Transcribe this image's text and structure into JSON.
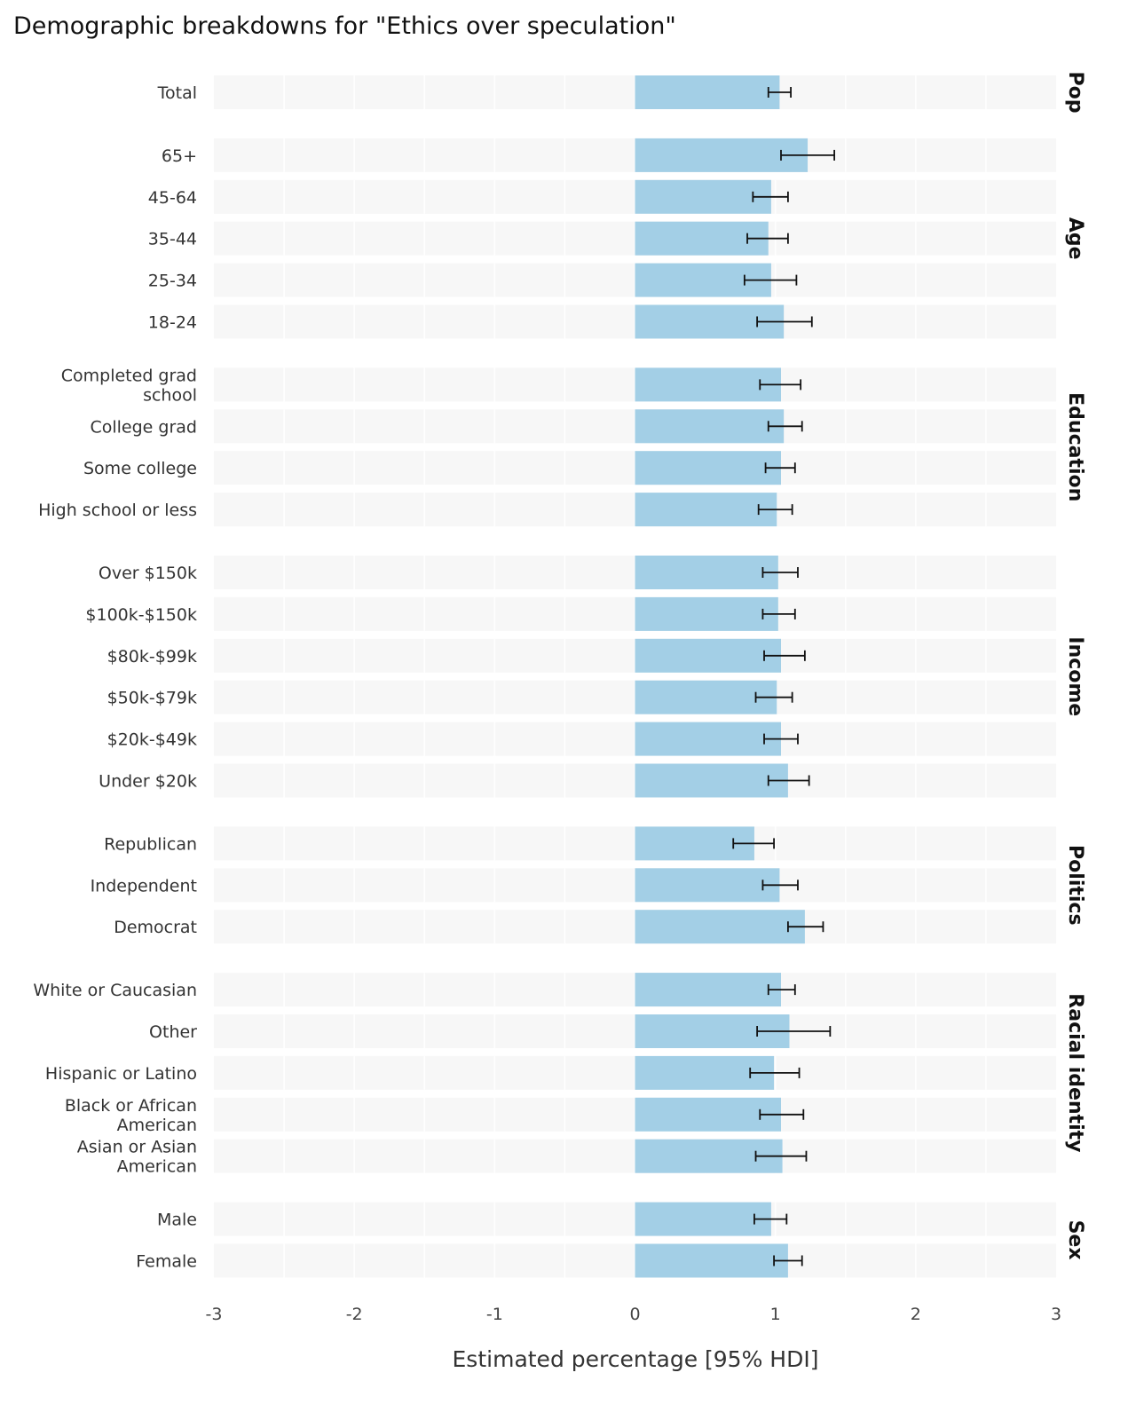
{
  "chart_data": {
    "type": "bar",
    "orientation": "horizontal",
    "title": "Demographic breakdowns for \"Ethics over speculation\"",
    "xlabel": "Estimated percentage [95% HDI]",
    "ylabel": "",
    "xlim": [
      -3,
      3
    ],
    "xticks": [
      -3,
      -2,
      -1,
      0,
      1,
      2,
      3
    ],
    "xtick_labels": [
      "-3",
      "-2",
      "-1",
      "0",
      "1",
      "2",
      "3"
    ],
    "grid": true,
    "bar_color": "#a3cfe6",
    "band_color": "#f7f7f7",
    "errorbar_color": "#111111",
    "facets": [
      {
        "name": "Pop",
        "rows": [
          {
            "label": "Total",
            "value": 1.03,
            "lo": 0.95,
            "hi": 1.11
          }
        ]
      },
      {
        "name": "Age",
        "rows": [
          {
            "label": "65+",
            "value": 1.23,
            "lo": 1.04,
            "hi": 1.42
          },
          {
            "label": "45-64",
            "value": 0.97,
            "lo": 0.84,
            "hi": 1.09
          },
          {
            "label": "35-44",
            "value": 0.95,
            "lo": 0.8,
            "hi": 1.09
          },
          {
            "label": "25-34",
            "value": 0.97,
            "lo": 0.78,
            "hi": 1.15
          },
          {
            "label": "18-24",
            "value": 1.06,
            "lo": 0.87,
            "hi": 1.26
          }
        ]
      },
      {
        "name": "Education",
        "rows": [
          {
            "label": "Completed grad school",
            "lines": [
              "Completed grad",
              "school"
            ],
            "value": 1.04,
            "lo": 0.89,
            "hi": 1.18
          },
          {
            "label": "College grad",
            "value": 1.06,
            "lo": 0.95,
            "hi": 1.19
          },
          {
            "label": "Some college",
            "value": 1.04,
            "lo": 0.93,
            "hi": 1.14
          },
          {
            "label": "High school or less",
            "value": 1.01,
            "lo": 0.88,
            "hi": 1.12
          }
        ]
      },
      {
        "name": "Income",
        "rows": [
          {
            "label": "Over $150k",
            "value": 1.02,
            "lo": 0.91,
            "hi": 1.16
          },
          {
            "label": "$100k-$150k",
            "value": 1.02,
            "lo": 0.91,
            "hi": 1.14
          },
          {
            "label": "$80k-$99k",
            "value": 1.04,
            "lo": 0.92,
            "hi": 1.21
          },
          {
            "label": "$50k-$79k",
            "value": 1.01,
            "lo": 0.86,
            "hi": 1.12
          },
          {
            "label": "$20k-$49k",
            "value": 1.04,
            "lo": 0.92,
            "hi": 1.16
          },
          {
            "label": "Under $20k",
            "value": 1.09,
            "lo": 0.95,
            "hi": 1.24
          }
        ]
      },
      {
        "name": "Politics",
        "rows": [
          {
            "label": "Republican",
            "value": 0.85,
            "lo": 0.7,
            "hi": 0.99
          },
          {
            "label": "Independent",
            "value": 1.03,
            "lo": 0.91,
            "hi": 1.16
          },
          {
            "label": "Democrat",
            "value": 1.21,
            "lo": 1.09,
            "hi": 1.34
          }
        ]
      },
      {
        "name": "Racial identity",
        "rows": [
          {
            "label": "White or Caucasian",
            "value": 1.04,
            "lo": 0.95,
            "hi": 1.14
          },
          {
            "label": "Other",
            "value": 1.1,
            "lo": 0.87,
            "hi": 1.39
          },
          {
            "label": "Hispanic or Latino",
            "value": 0.99,
            "lo": 0.82,
            "hi": 1.17
          },
          {
            "label": "Black or African American",
            "lines": [
              "Black or African",
              "American"
            ],
            "value": 1.04,
            "lo": 0.89,
            "hi": 1.2
          },
          {
            "label": "Asian or Asian American",
            "lines": [
              "Asian or Asian",
              "American"
            ],
            "value": 1.05,
            "lo": 0.86,
            "hi": 1.22
          }
        ]
      },
      {
        "name": "Sex",
        "rows": [
          {
            "label": "Male",
            "value": 0.97,
            "lo": 0.85,
            "hi": 1.08
          },
          {
            "label": "Female",
            "value": 1.09,
            "lo": 0.99,
            "hi": 1.19
          }
        ]
      }
    ]
  }
}
